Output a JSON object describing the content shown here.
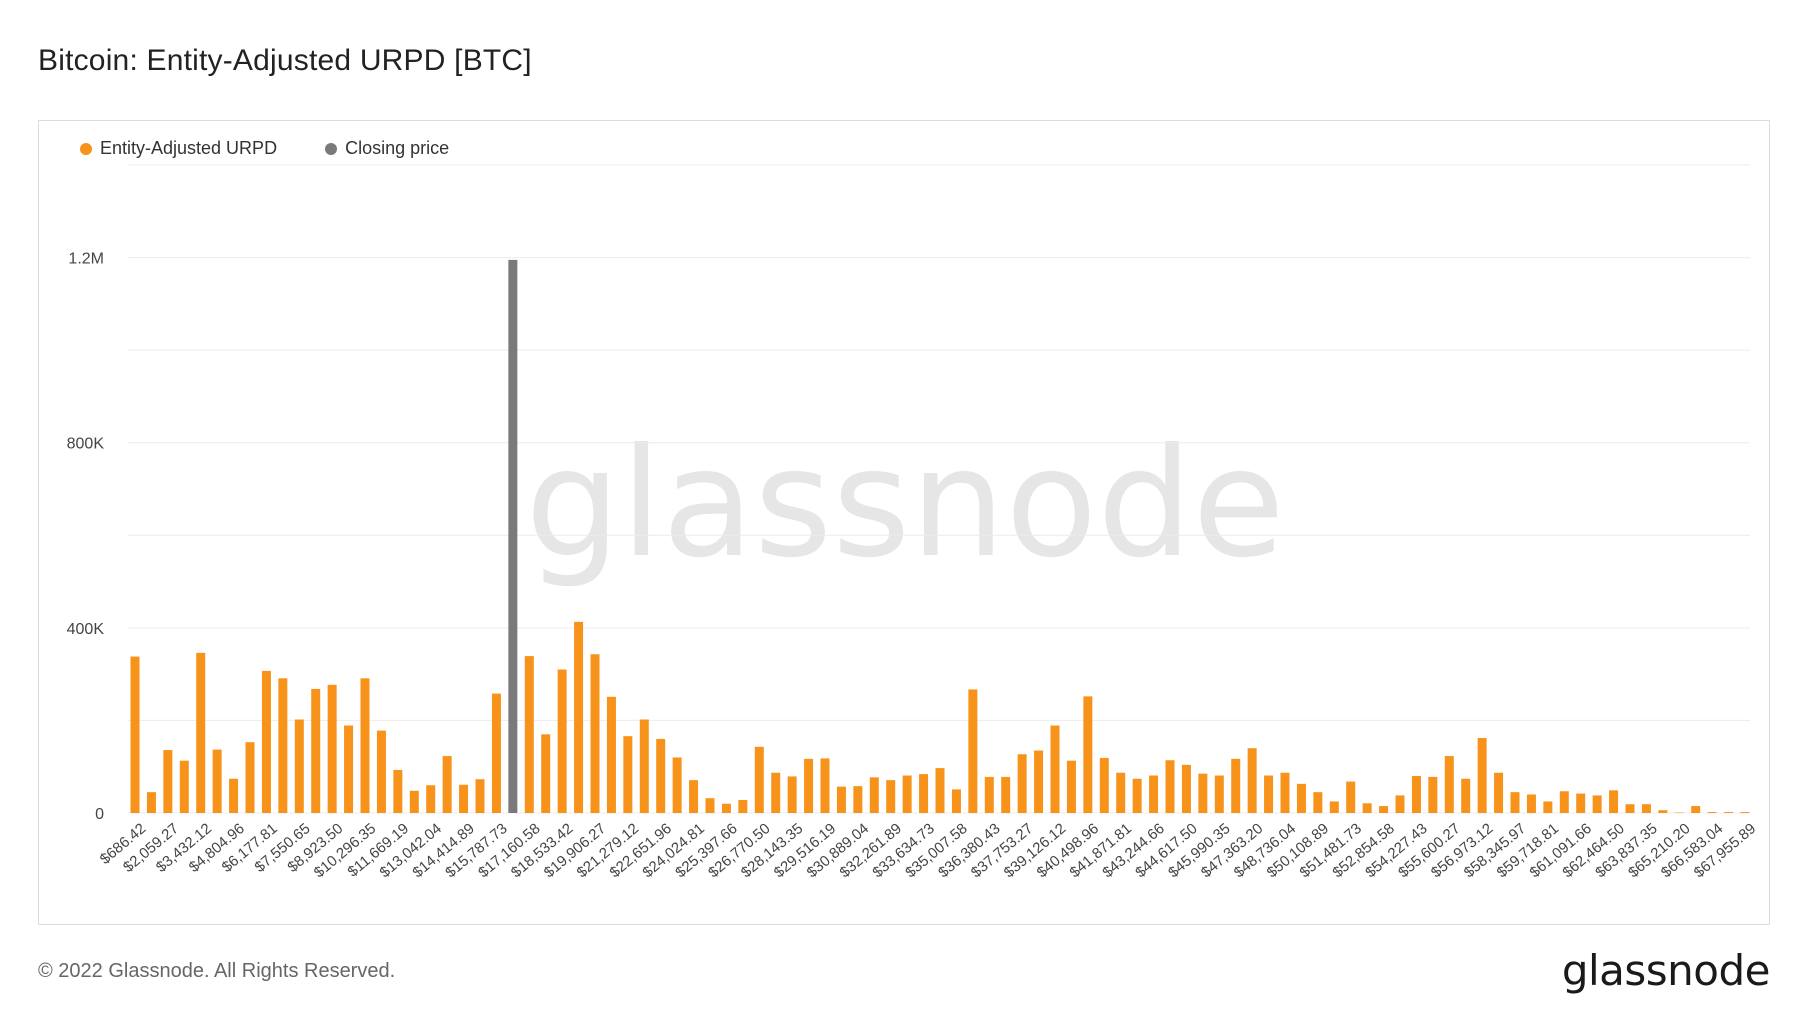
{
  "title": "Bitcoin: Entity-Adjusted URPD [BTC]",
  "footer": {
    "copyright": "© 2022 Glassnode. All Rights Reserved.",
    "logo": "glassnode"
  },
  "watermark": "glassnode",
  "colors": {
    "urpd": "#f7931a",
    "closing": "#7a7a7a",
    "grid": "#ececec",
    "axis_text": "#444444"
  },
  "chart_data": {
    "type": "bar",
    "title": "Bitcoin: Entity-Adjusted URPD [BTC]",
    "legend_position": "top-left",
    "legend": [
      {
        "name": "Entity-Adjusted URPD",
        "color": "#f7931a"
      },
      {
        "name": "Closing price",
        "color": "#7a7a7a"
      }
    ],
    "grid": true,
    "ylim": [
      0,
      1400000
    ],
    "yticks": [
      {
        "value": 0,
        "label": "0"
      },
      {
        "value": 400000,
        "label": "400K"
      },
      {
        "value": 800000,
        "label": "800K"
      },
      {
        "value": 1200000,
        "label": "1.2M"
      }
    ],
    "closing_index": 23,
    "x_tick_labels": [
      "$686.42",
      "$2,059.27",
      "$3,432.12",
      "$4,804.96",
      "$6,177.81",
      "$7,550.65",
      "$8,923.50",
      "$10,296.35",
      "$11,669.19",
      "$13,042.04",
      "$14,414.89",
      "$15,787.73",
      "$17,160.58",
      "$18,533.42",
      "$19,906.27",
      "$21,279.12",
      "$22,651.96",
      "$24,024.81",
      "$25,397.66",
      "$26,770.50",
      "$28,143.35",
      "$29,516.19",
      "$30,889.04",
      "$32,261.89",
      "$33,634.73",
      "$35,007.58",
      "$36,380.43",
      "$37,753.27",
      "$39,126.12",
      "$40,498.96",
      "$41,871.81",
      "$43,244.66",
      "$44,617.50",
      "$45,990.35",
      "$47,363.20",
      "$48,736.04",
      "$50,108.89",
      "$51,481.73",
      "$52,854.58",
      "$54,227.43",
      "$55,600.27",
      "$56,973.12",
      "$58,345.97",
      "$59,718.81",
      "$61,091.66",
      "$62,464.50",
      "$63,837.35",
      "$65,210.20",
      "$66,583.04",
      "$67,955.89"
    ],
    "values": [
      338000,
      45000,
      136000,
      113000,
      346000,
      137000,
      74000,
      153000,
      307000,
      291000,
      202000,
      268000,
      277000,
      189000,
      291000,
      178000,
      93000,
      48000,
      60000,
      123000,
      61000,
      73000,
      258000,
      1195000,
      339000,
      170000,
      310000,
      413000,
      343000,
      251000,
      166000,
      202000,
      160000,
      120000,
      71000,
      32000,
      20000,
      28000,
      143000,
      87000,
      79000,
      117000,
      118000,
      57000,
      58000,
      77000,
      71000,
      81000,
      84000,
      97000,
      51000,
      267000,
      78000,
      78000,
      127000,
      135000,
      189000,
      113000,
      252000,
      119000,
      87000,
      74000,
      81000,
      114000,
      104000,
      85000,
      81000,
      117000,
      140000,
      81000,
      87000,
      63000,
      45000,
      25000,
      68000,
      21000,
      15000,
      38000,
      80000,
      78000,
      123000,
      74000,
      162000,
      87000,
      45000,
      40000,
      25000,
      47000,
      42000,
      38000,
      49000,
      19000,
      19000,
      6000,
      1000,
      15000,
      2000,
      2000,
      2000
    ]
  }
}
